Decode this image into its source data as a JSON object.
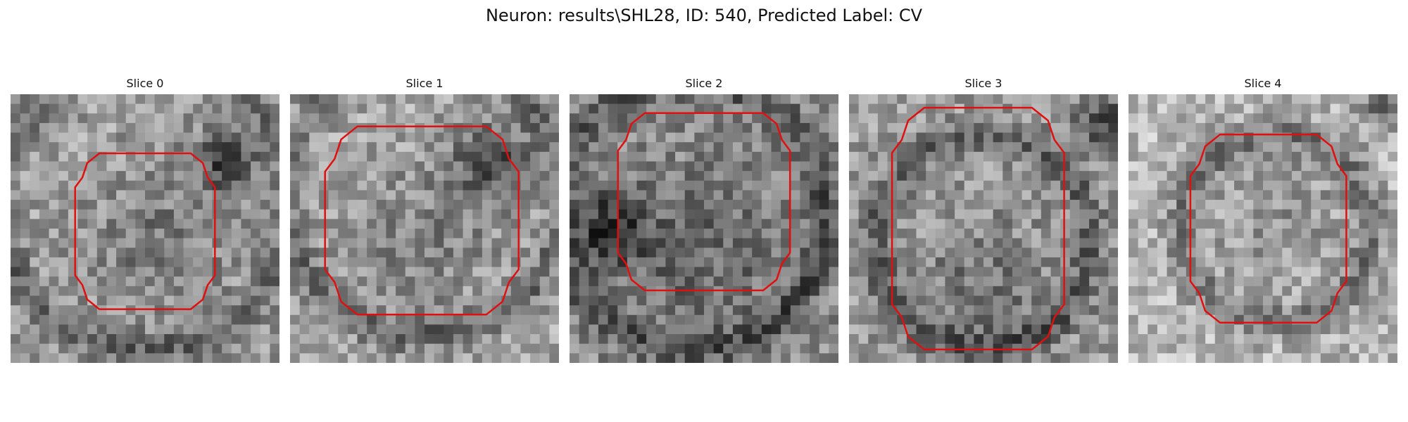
{
  "figure": {
    "title": "Neuron: results\\SHL28, ID: 540, Predicted Label: CV"
  },
  "panels": [
    {
      "title": "Slice 0"
    },
    {
      "title": "Slice 1"
    },
    {
      "title": "Slice 2"
    },
    {
      "title": "Slice 3"
    },
    {
      "title": "Slice 4"
    }
  ],
  "colors": {
    "contour": "#e01010",
    "background": "#ffffff"
  }
}
